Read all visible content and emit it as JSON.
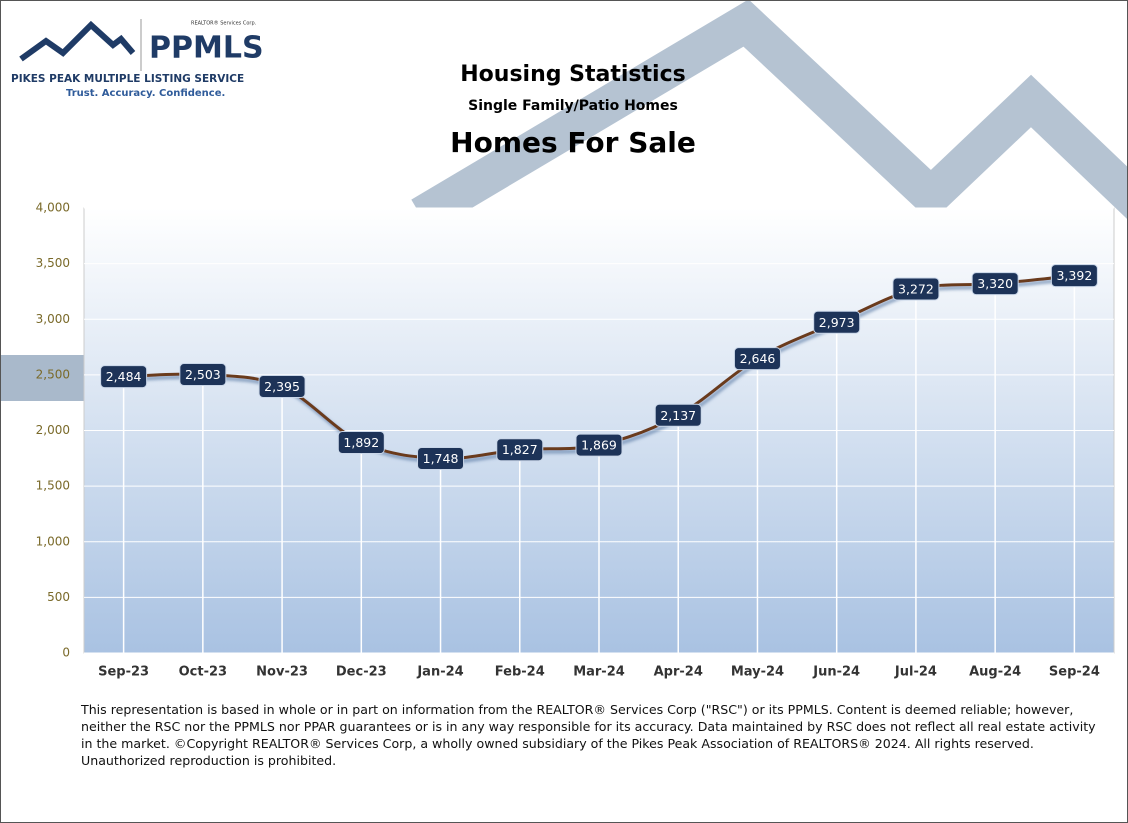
{
  "logo": {
    "corp": "REALTOR® Services Corp.",
    "name": "PPMLS",
    "service": "PIKES PEAK MULTIPLE LISTING SERVICE",
    "tagline": "Trust. Accuracy. Confidence."
  },
  "chart_data": {
    "type": "line",
    "title": "Housing Statistics",
    "subtitle": "Single Family/Patio Homes",
    "heading": "Homes For Sale",
    "categories": [
      "Sep-23",
      "Oct-23",
      "Nov-23",
      "Dec-23",
      "Jan-24",
      "Feb-24",
      "Mar-24",
      "Apr-24",
      "May-24",
      "Jun-24",
      "Jul-24",
      "Aug-24",
      "Sep-24"
    ],
    "values": [
      2484,
      2503,
      2395,
      1892,
      1748,
      1827,
      1869,
      2137,
      2646,
      2973,
      3272,
      3320,
      3392
    ],
    "value_labels": [
      "2,484",
      "2,503",
      "2,395",
      "1,892",
      "1,748",
      "1,827",
      "1,869",
      "2,137",
      "2,646",
      "2,973",
      "3,272",
      "3,320",
      "3,392"
    ],
    "color": "#6b3a1f",
    "ylim": [
      0,
      4000
    ],
    "yticks": [
      0,
      500,
      {
        "value": 1000,
        "label": "1,000"
      },
      {
        "value": 1500,
        "label": "1,500"
      },
      {
        "value": 2000,
        "label": "2,000"
      },
      {
        "value": 2500,
        "label": "2,500"
      },
      {
        "value": 3000,
        "label": "3,000"
      },
      {
        "value": 3500,
        "label": "3,500"
      },
      {
        "value": 4000,
        "label": "4,000"
      }
    ],
    "grid": true
  },
  "footer": "This representation is based in whole or in part on information from the REALTOR® Services Corp (\"RSC\") or its PPMLS. Content is deemed reliable; however, neither the RSC nor the PPMLS nor PPAR guarantees or is in any way responsible for its accuracy. Data maintained by RSC does not reflect all real estate activity in the market. ©Copyright REALTOR® Services Corp, a wholly owned subsidiary of the Pikes Peak Association of REALTORS® 2024. All rights reserved. Unauthorized reproduction is prohibited."
}
